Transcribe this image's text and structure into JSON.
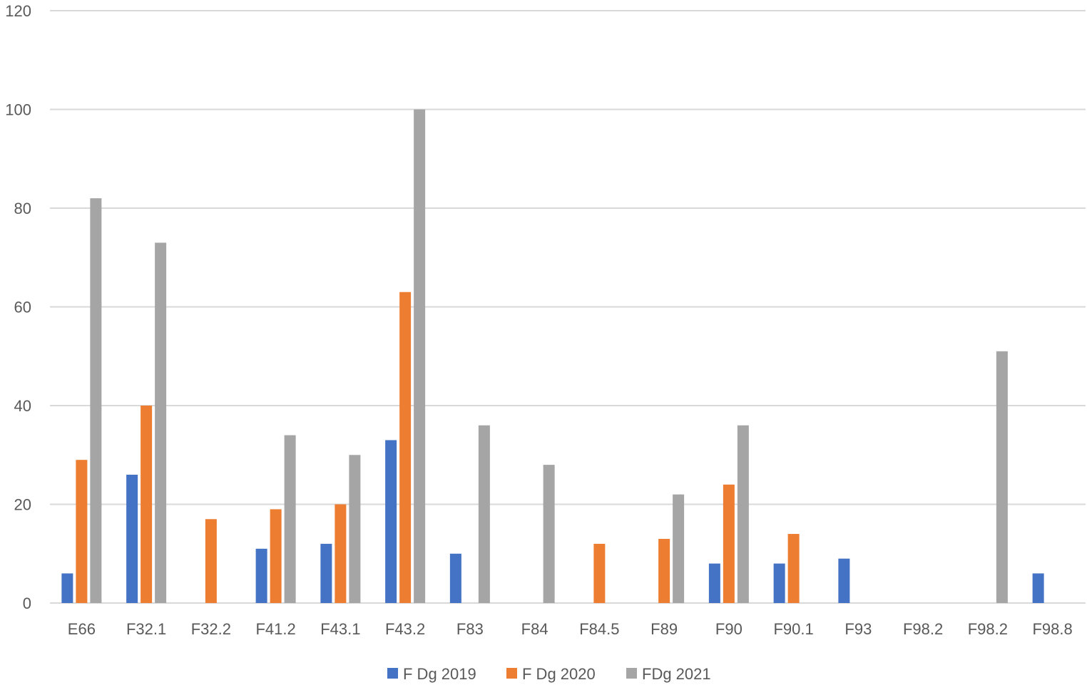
{
  "chart_data": {
    "type": "bar",
    "title": "",
    "xlabel": "",
    "ylabel": "",
    "ylim": [
      0,
      120
    ],
    "yticks": [
      0,
      20,
      40,
      60,
      80,
      100,
      120
    ],
    "grid": true,
    "legend_position": "bottom",
    "categories": [
      "E66",
      "F32.1",
      "F32.2",
      "F41.2",
      "F43.1",
      "F43.2",
      "F83",
      "F84",
      "F84.5",
      "F89",
      "F90",
      "F90.1",
      "F93",
      "F98.2",
      "F98.2",
      "F98.8"
    ],
    "series": [
      {
        "name": "F Dg 2019",
        "color": "#4472C4",
        "values": [
          6,
          26,
          0,
          11,
          12,
          33,
          10,
          0,
          0,
          0,
          8,
          8,
          9,
          0,
          0,
          6
        ]
      },
      {
        "name": "F Dg 2020",
        "color": "#ED7D31",
        "values": [
          29,
          40,
          17,
          19,
          20,
          63,
          0,
          0,
          12,
          13,
          24,
          14,
          0,
          0,
          0,
          0
        ]
      },
      {
        "name": "FDg 2021",
        "color": "#A5A5A5",
        "values": [
          82,
          73,
          0,
          34,
          30,
          100,
          36,
          28,
          0,
          22,
          36,
          0,
          0,
          0,
          51,
          0
        ]
      }
    ]
  }
}
